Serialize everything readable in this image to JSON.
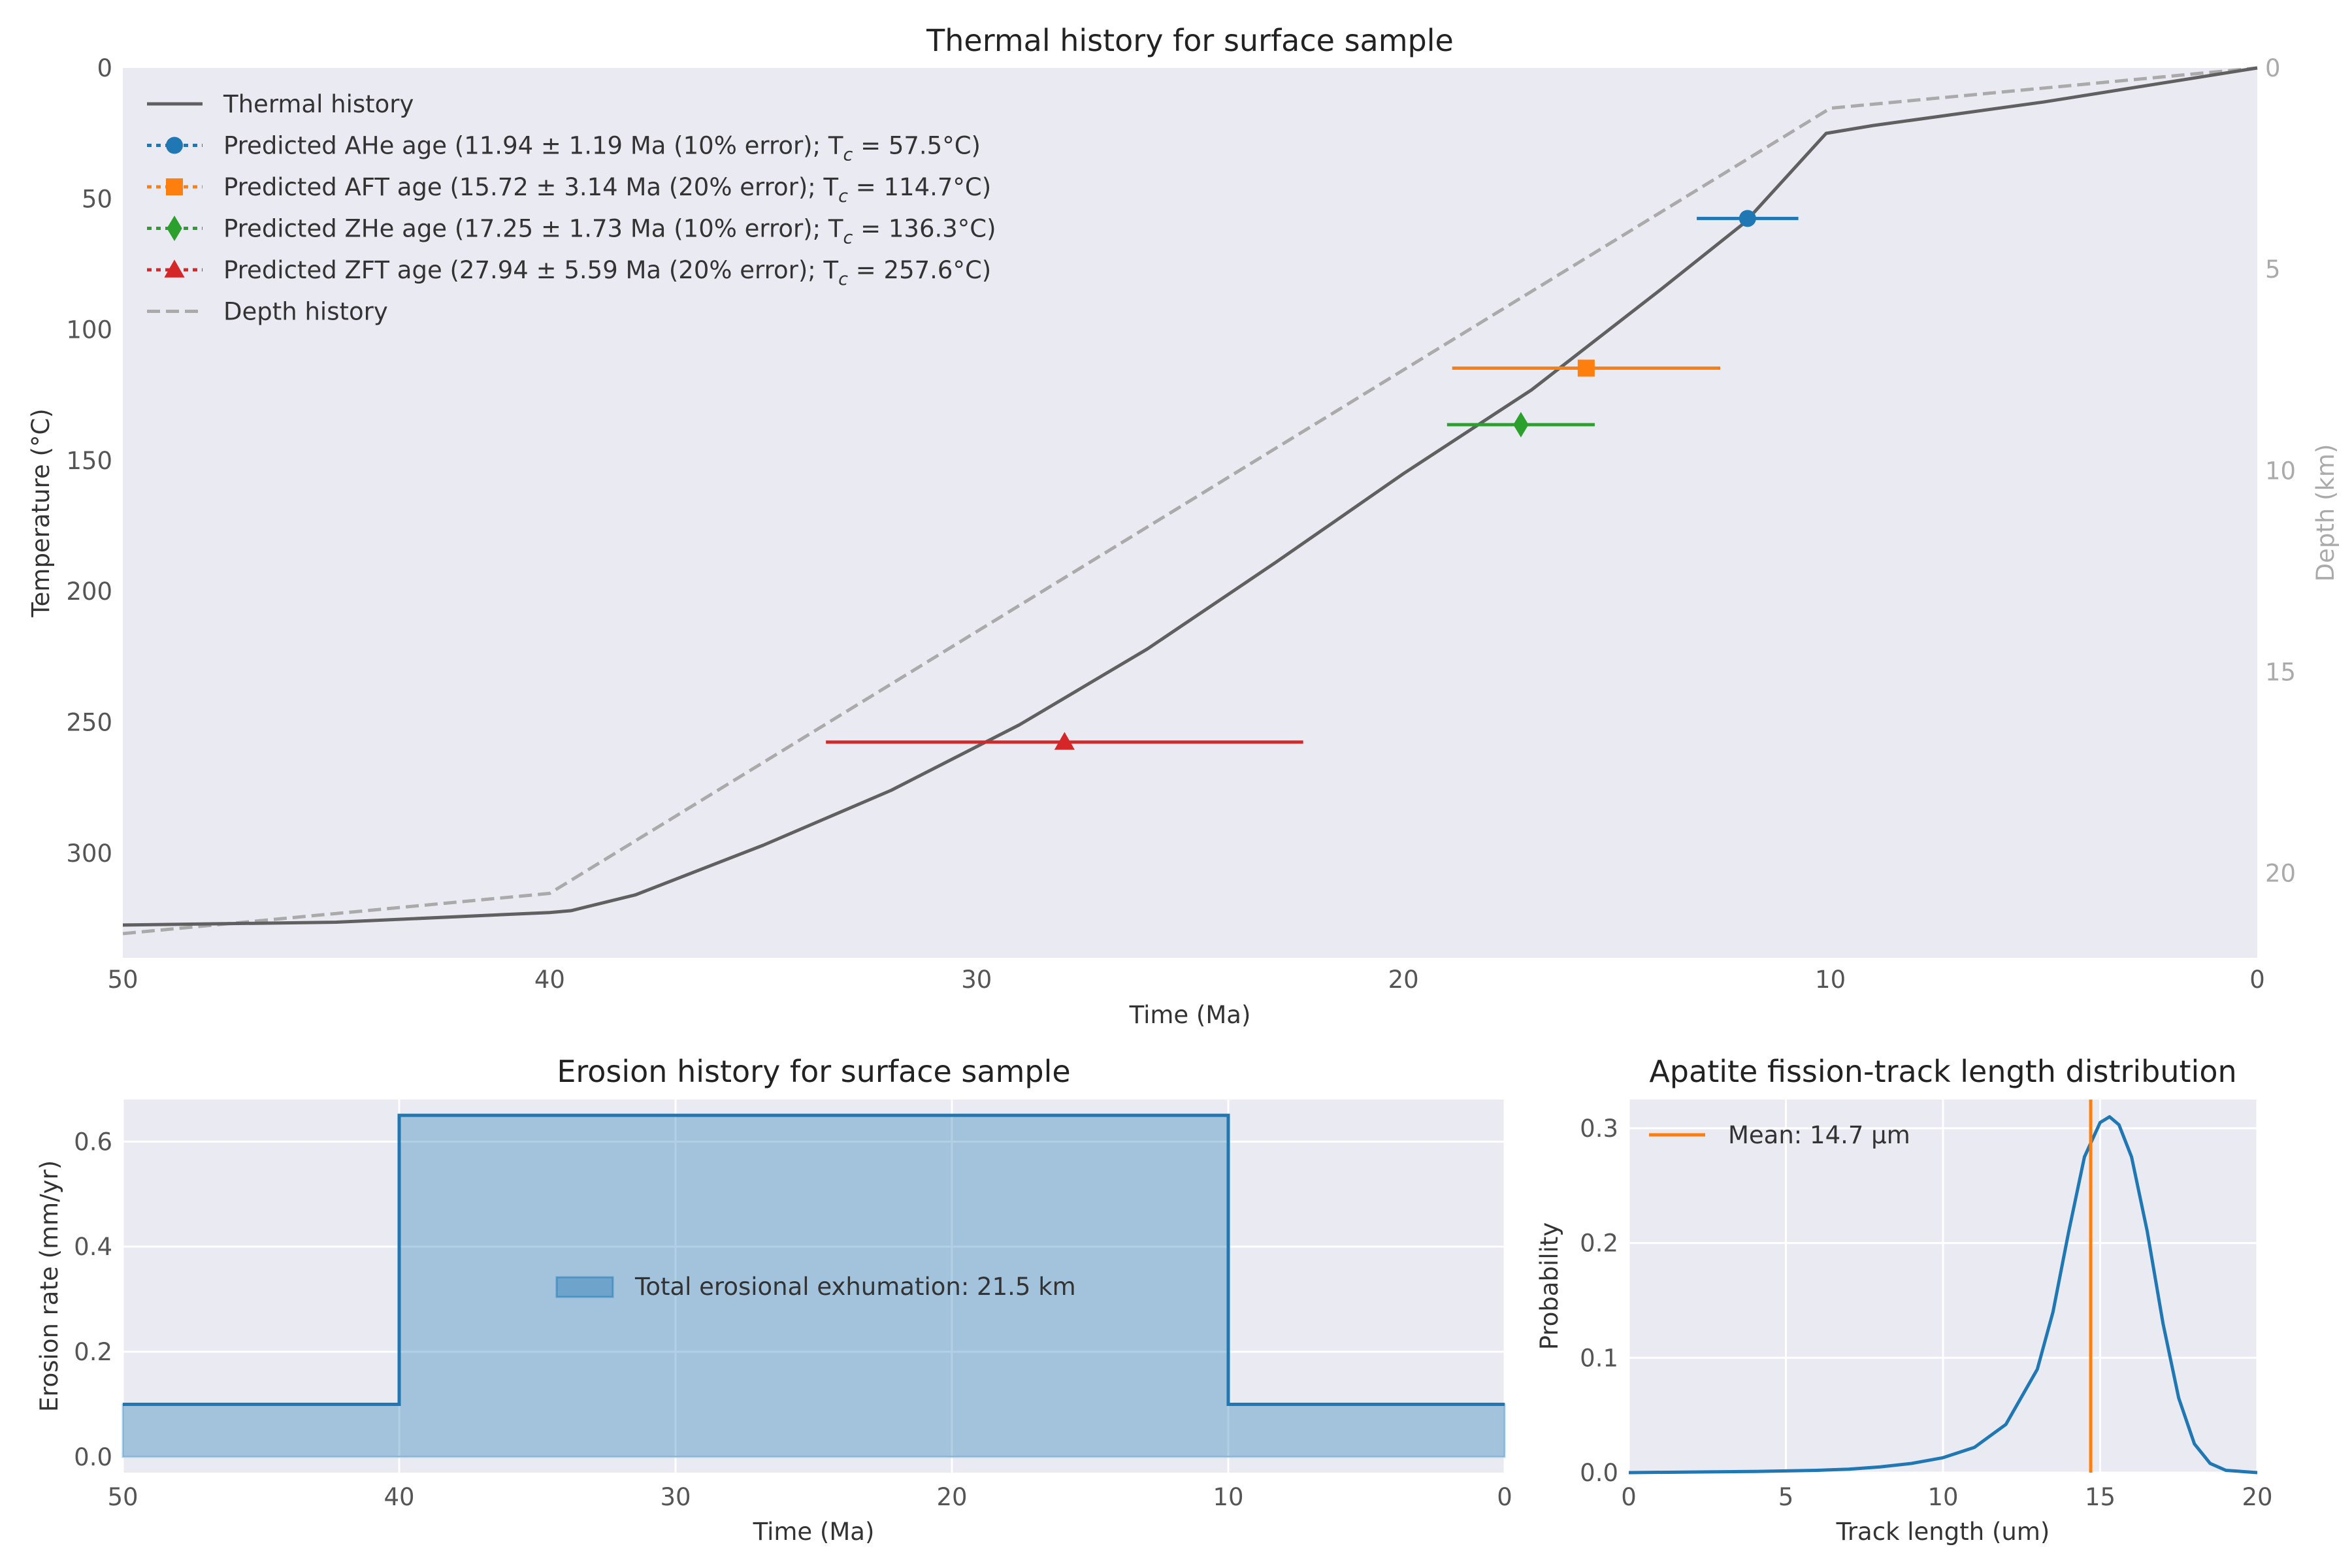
{
  "chart_data": [
    {
      "type": "line",
      "title": "Thermal history for surface sample",
      "xlabel": "Time (Ma)",
      "ylabel": "Temperature (°C)",
      "y2label": "Depth (km)",
      "xlim": [
        50,
        0
      ],
      "ylim": [
        340,
        0
      ],
      "y2lim": [
        22.1,
        0
      ],
      "x_ticks": [
        "50",
        "40",
        "30",
        "20",
        "10",
        "0"
      ],
      "y_ticks": [
        "0",
        "50",
        "100",
        "150",
        "200",
        "250",
        "300"
      ],
      "y2_ticks": [
        "0",
        "5",
        "10",
        "15",
        "20"
      ],
      "grid": false,
      "legend_position": "upper-left",
      "series": [
        {
          "name": "Thermal history",
          "color": "#606060",
          "style": "solid",
          "x": [
            50,
            45,
            40,
            39.5,
            38,
            35,
            32,
            29,
            26,
            23,
            20,
            17,
            14,
            12,
            10.1,
            9,
            5,
            0
          ],
          "y": [
            327.5,
            326.4,
            322.7,
            322.0,
            316.0,
            297.0,
            276.0,
            251.0,
            222.0,
            189.0,
            155.0,
            123.0,
            85.0,
            59.0,
            25.0,
            22.0,
            13.0,
            0
          ]
        },
        {
          "name": "Depth history",
          "color": "#aaaaaa",
          "style": "dashed",
          "axis": "right",
          "x": [
            50,
            40,
            10,
            0
          ],
          "y": [
            21.5,
            20.5,
            1.0,
            0
          ]
        }
      ],
      "ages": [
        {
          "name": "Predicted AHe age (11.94 ± 1.19 Ma (10% error); T",
          "tc": " = 57.5°C)",
          "age": 11.94,
          "err": 1.19,
          "tc_value": 57.5,
          "color": "#1f77b4",
          "marker": "circle"
        },
        {
          "name": "Predicted AFT age (15.72 ± 3.14 Ma (20% error); T",
          "tc": " = 114.7°C)",
          "age": 15.72,
          "err": 3.14,
          "tc_value": 114.7,
          "color": "#ff7f0e",
          "marker": "square"
        },
        {
          "name": "Predicted ZHe age (17.25 ± 1.73 Ma (10% error); T",
          "tc": " = 136.3°C)",
          "age": 17.25,
          "err": 1.73,
          "tc_value": 136.3,
          "color": "#2ca02c",
          "marker": "diamond"
        },
        {
          "name": "Predicted ZFT age (27.94 ± 5.59 Ma (20% error); T",
          "tc": " = 257.6°C)",
          "age": 27.94,
          "err": 5.59,
          "tc_value": 257.6,
          "color": "#d62728",
          "marker": "triangle"
        }
      ]
    },
    {
      "type": "area",
      "title": "Erosion history for surface sample",
      "xlabel": "Time (Ma)",
      "ylabel": "Erosion rate (mm/yr)",
      "xlim": [
        50,
        0
      ],
      "ylim": [
        -0.03,
        0.68
      ],
      "x_ticks": [
        "50",
        "40",
        "30",
        "20",
        "10",
        "0"
      ],
      "y_ticks": [
        "0.0",
        "0.2",
        "0.4",
        "0.6"
      ],
      "grid": true,
      "legend_position": "center",
      "series": [
        {
          "name": "Total erosional exhumation: 21.5 km",
          "color": "#1f77b4",
          "x": [
            50,
            40,
            40,
            10,
            10,
            0
          ],
          "y": [
            0.1,
            0.1,
            0.65,
            0.65,
            0.1,
            0.1
          ]
        }
      ]
    },
    {
      "type": "line",
      "title": "Apatite fission-track length distribution",
      "xlabel": "Track length (um)",
      "ylabel": "Probability",
      "xlim": [
        0,
        20
      ],
      "ylim": [
        0,
        0.325
      ],
      "x_ticks": [
        "0",
        "5",
        "10",
        "15",
        "20"
      ],
      "y_ticks": [
        "0.0",
        "0.1",
        "0.2",
        "0.3"
      ],
      "grid": true,
      "legend_position": "upper-left",
      "series": [
        {
          "name": "",
          "color": "#1f77b4",
          "x": [
            0,
            2,
            4,
            6,
            7,
            8,
            9,
            10,
            11,
            12,
            13,
            13.5,
            14,
            14.5,
            15,
            15.3,
            15.6,
            16,
            16.5,
            17,
            17.5,
            18,
            18.5,
            19,
            20
          ],
          "y": [
            0.0,
            0.0005,
            0.001,
            0.002,
            0.003,
            0.005,
            0.008,
            0.013,
            0.022,
            0.042,
            0.09,
            0.14,
            0.21,
            0.275,
            0.305,
            0.31,
            0.303,
            0.275,
            0.21,
            0.13,
            0.065,
            0.025,
            0.008,
            0.002,
            0.0
          ]
        }
      ],
      "mean_line": {
        "name": "Mean: 14.7 μm",
        "value": 14.7,
        "color": "#ff7f0e"
      }
    }
  ]
}
